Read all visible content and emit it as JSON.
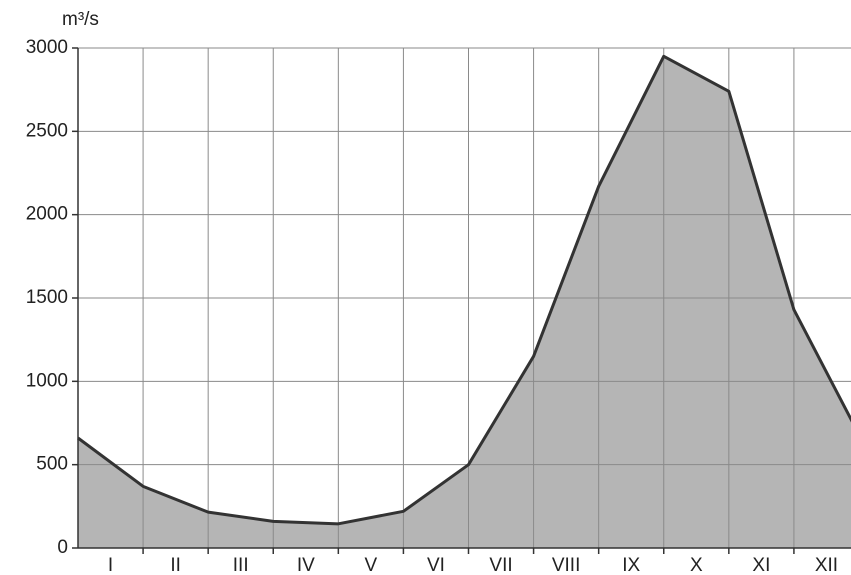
{
  "chart_data": {
    "type": "area",
    "y_label": "m³/s",
    "categories": [
      "I",
      "II",
      "III",
      "IV",
      "V",
      "VI",
      "VII",
      "VIII",
      "IX",
      "X",
      "XI",
      "XII"
    ],
    "x": [
      0,
      1,
      2,
      3,
      4,
      5,
      6,
      7,
      8,
      9,
      10,
      11,
      12
    ],
    "values": [
      660,
      370,
      215,
      160,
      145,
      220,
      500,
      1150,
      2170,
      2950,
      2740,
      1430,
      680
    ],
    "xlim": [
      0,
      12
    ],
    "ylim": [
      0,
      3000
    ],
    "yticks": [
      0,
      500,
      1000,
      1500,
      2000,
      2500,
      3000
    ],
    "color": "#b5b5b5",
    "line_color": "#333333",
    "grid": true
  }
}
